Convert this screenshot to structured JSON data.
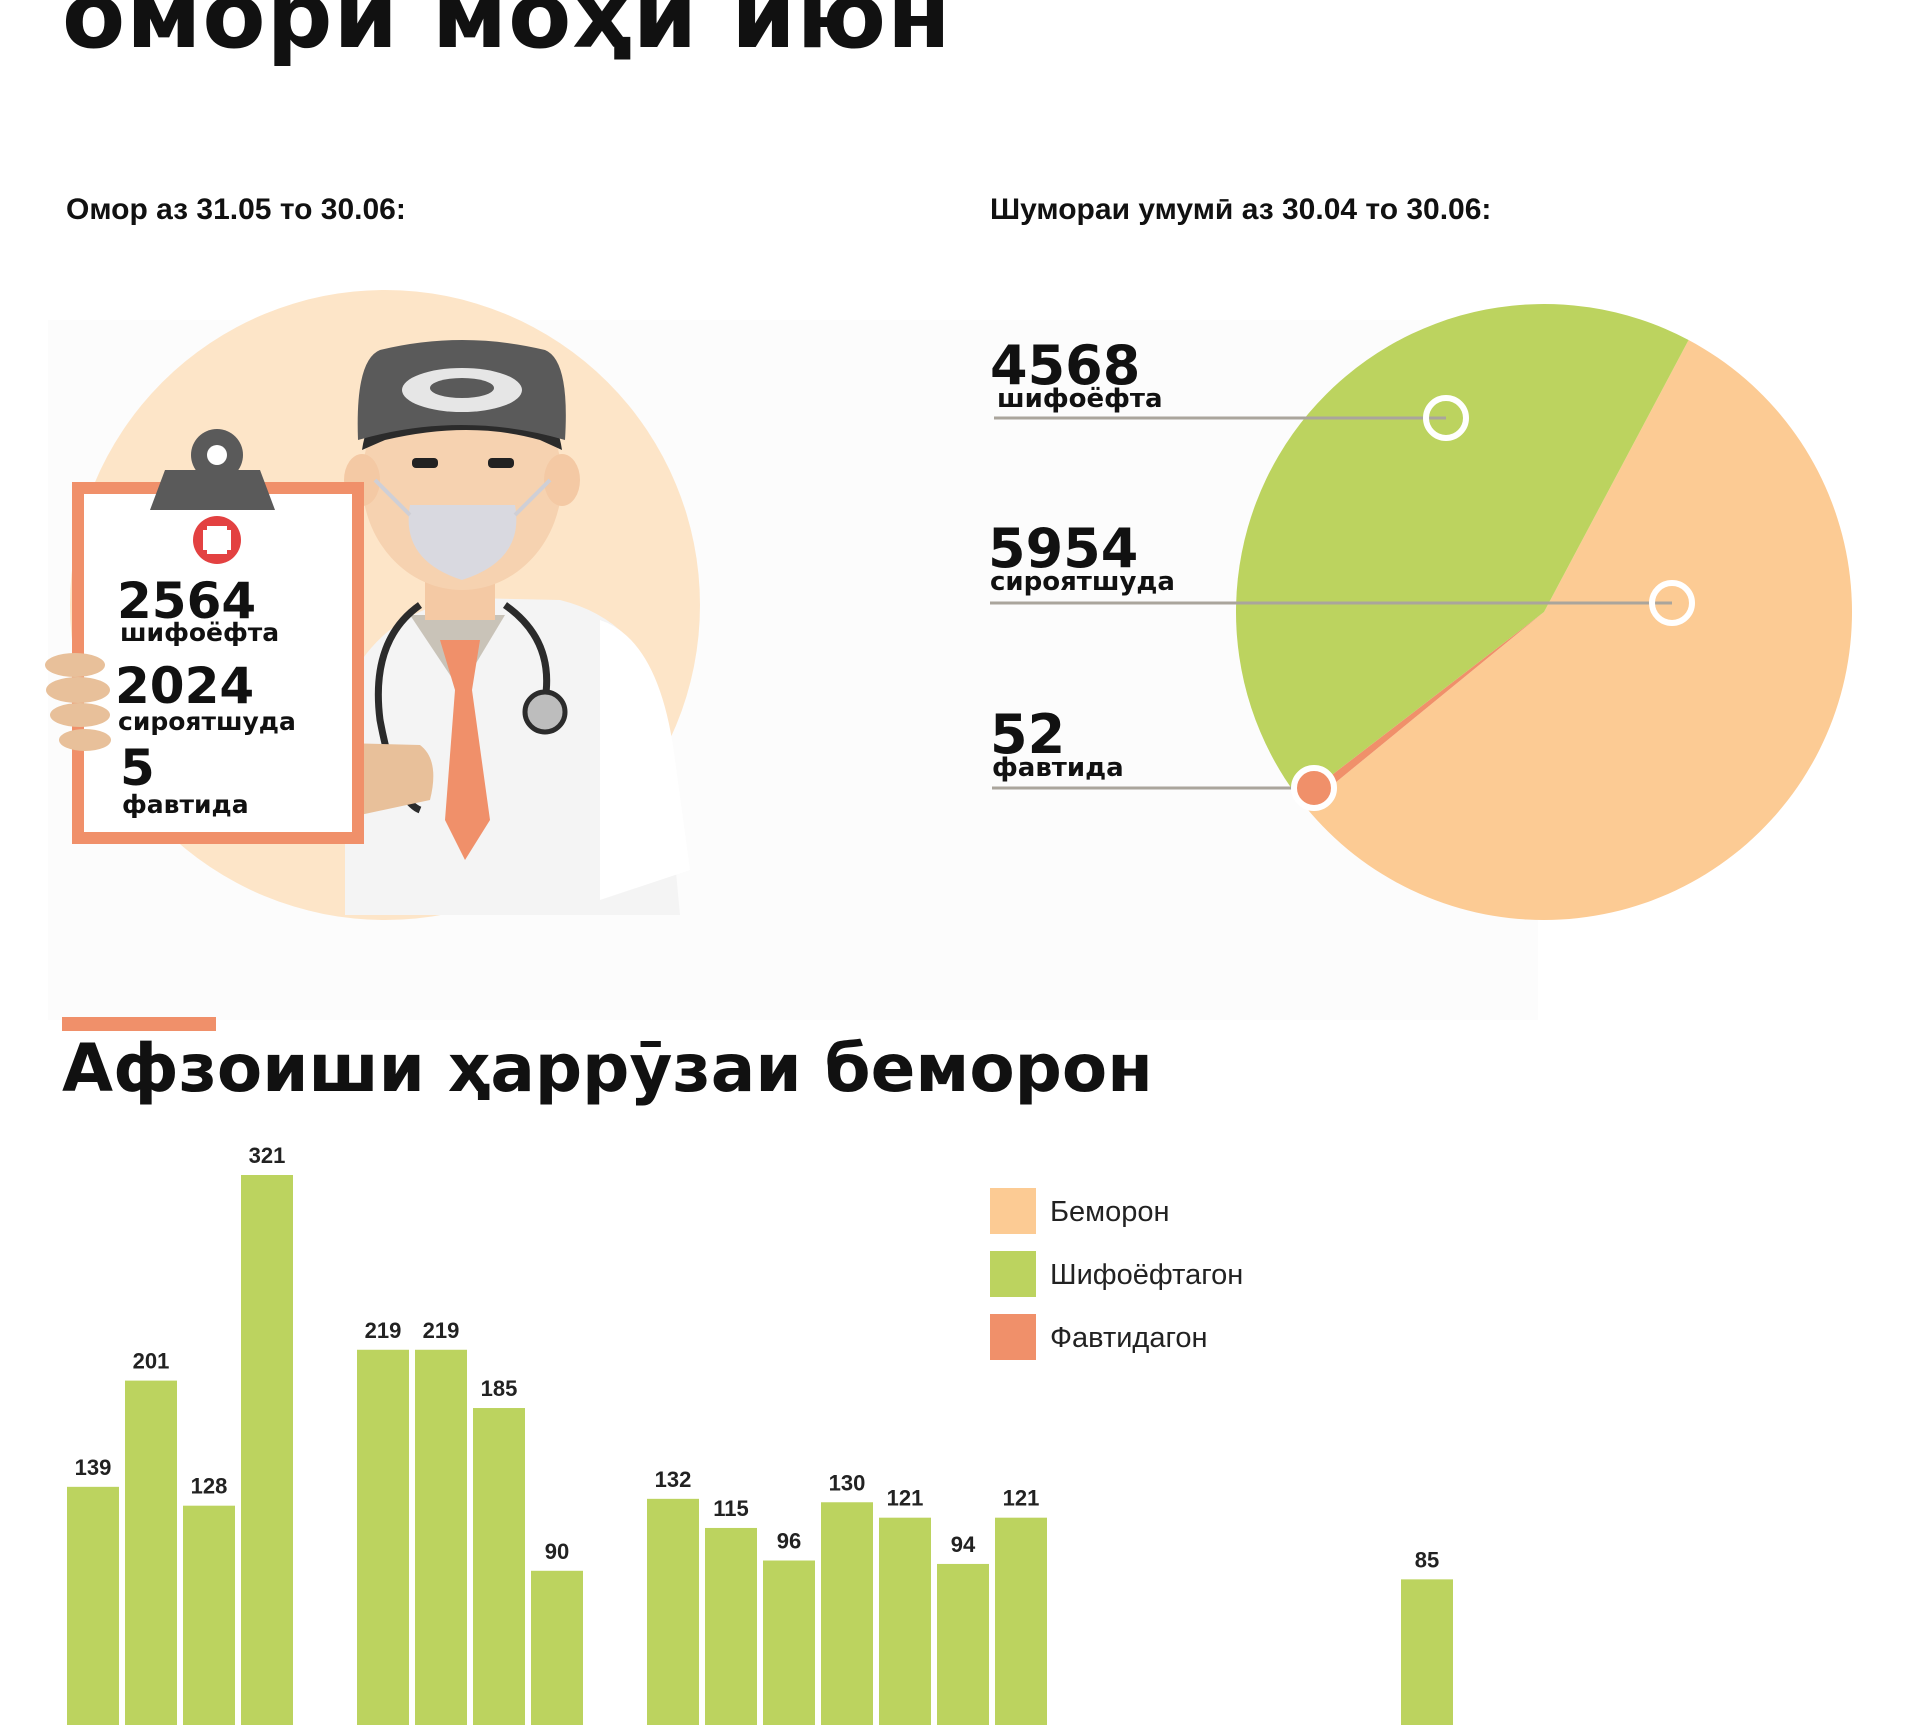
{
  "header": {
    "title": "омори моҳи июн"
  },
  "left_panel": {
    "caption": "Омор аз 31.05 то 30.06:",
    "stats": [
      {
        "value": "2564",
        "label": "шифоёфта"
      },
      {
        "value": "2024",
        "label": "сироятшуда"
      },
      {
        "value": "5",
        "label": "фавтида"
      }
    ]
  },
  "right_panel": {
    "caption": "Шумораи умумӣ аз 30.04 то 30.06:",
    "stats": [
      {
        "value": "4568",
        "label": "шифоёфта"
      },
      {
        "value": "5954",
        "label": "сироятшуда"
      },
      {
        "value": "52",
        "label": "фавтида"
      }
    ]
  },
  "section": {
    "title": "Афзоиши ҳаррӯзаи беморон"
  },
  "colors": {
    "sick": "#fccb94",
    "recovered": "#bcd35f",
    "dead": "#f0906a",
    "circle_bg": "#fde5c8",
    "accent_bar": "#f0906a"
  },
  "chart_data": [
    {
      "type": "pie",
      "title": "Шумораи умумӣ аз 30.04 то 30.06:",
      "labels": [
        "шифоёфта",
        "сироятшуда",
        "фавтида"
      ],
      "values": [
        4568,
        5954,
        52
      ],
      "colors": [
        "#bcd35f",
        "#fccb94",
        "#f0906a"
      ]
    },
    {
      "type": "bar",
      "title": "Афзоиши ҳаррӯзаи беморон",
      "legend": {
        "position": "top-right",
        "entries": [
          "Беморон",
          "Шифоёфтагон",
          "Фавтидагон"
        ]
      },
      "series": [
        {
          "name": "Шифоёфтагон",
          "color": "#bcd35f",
          "values": [
            139,
            201,
            128,
            321,
            null,
            219,
            219,
            185,
            90,
            null,
            132,
            115,
            96,
            130,
            121,
            94,
            121,
            null,
            null,
            null,
            null,
            null,
            null,
            85
          ]
        }
      ],
      "ylim": [
        0,
        340
      ],
      "grid": false
    }
  ]
}
